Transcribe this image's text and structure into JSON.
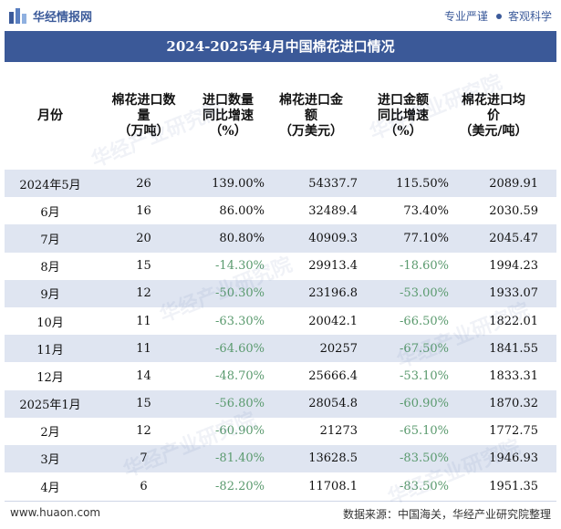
{
  "brand": {
    "name": "华经情报网",
    "slogan_left": "专业严谨",
    "slogan_right": "客观科学"
  },
  "title": "2024-2025年4月中国棉花进口情况",
  "table": {
    "headers": [
      "月份",
      "棉花进口数\n量\n（万吨）",
      "进口数量\n同比增速\n（%）",
      "棉花进口金\n额\n（万美元）",
      "进口金额\n同比增速\n（%）",
      "棉花进口均\n价\n（美元/吨）"
    ],
    "rows": [
      [
        "2024年5月",
        "26",
        "139.00%",
        "54337.7",
        "115.50%",
        "2089.91"
      ],
      [
        "6月",
        "16",
        "86.00%",
        "32489.4",
        "73.40%",
        "2030.59"
      ],
      [
        "7月",
        "20",
        "80.80%",
        "40909.3",
        "77.10%",
        "2045.47"
      ],
      [
        "8月",
        "15",
        "-14.30%",
        "29913.4",
        "-18.60%",
        "1994.23"
      ],
      [
        "9月",
        "12",
        "-50.30%",
        "23196.8",
        "-53.00%",
        "1933.07"
      ],
      [
        "10月",
        "11",
        "-63.30%",
        "20042.1",
        "-66.50%",
        "1822.01"
      ],
      [
        "11月",
        "11",
        "-64.60%",
        "20257",
        "-67.50%",
        "1841.55"
      ],
      [
        "12月",
        "14",
        "-48.70%",
        "25666.4",
        "-53.10%",
        "1833.31"
      ],
      [
        "2025年1月",
        "15",
        "-56.80%",
        "28054.8",
        "-60.90%",
        "1870.32"
      ],
      [
        "2月",
        "12",
        "-60.90%",
        "21273",
        "-65.10%",
        "1772.75"
      ],
      [
        "3月",
        "7",
        "-81.40%",
        "13628.5",
        "-83.50%",
        "1946.93"
      ],
      [
        "4月",
        "6",
        "-82.20%",
        "11708.1",
        "-83.50%",
        "1951.35"
      ]
    ]
  },
  "footer": {
    "url": "www.huaon.com",
    "source": "数据来源：中国海关，华经产业研究院整理"
  },
  "watermark": "华经产业研究院",
  "colors": {
    "header_bar": "#3b5998",
    "stripe": "#dfe5f1",
    "negative": "#5a9a6e",
    "brand": "#3b5a9a"
  }
}
